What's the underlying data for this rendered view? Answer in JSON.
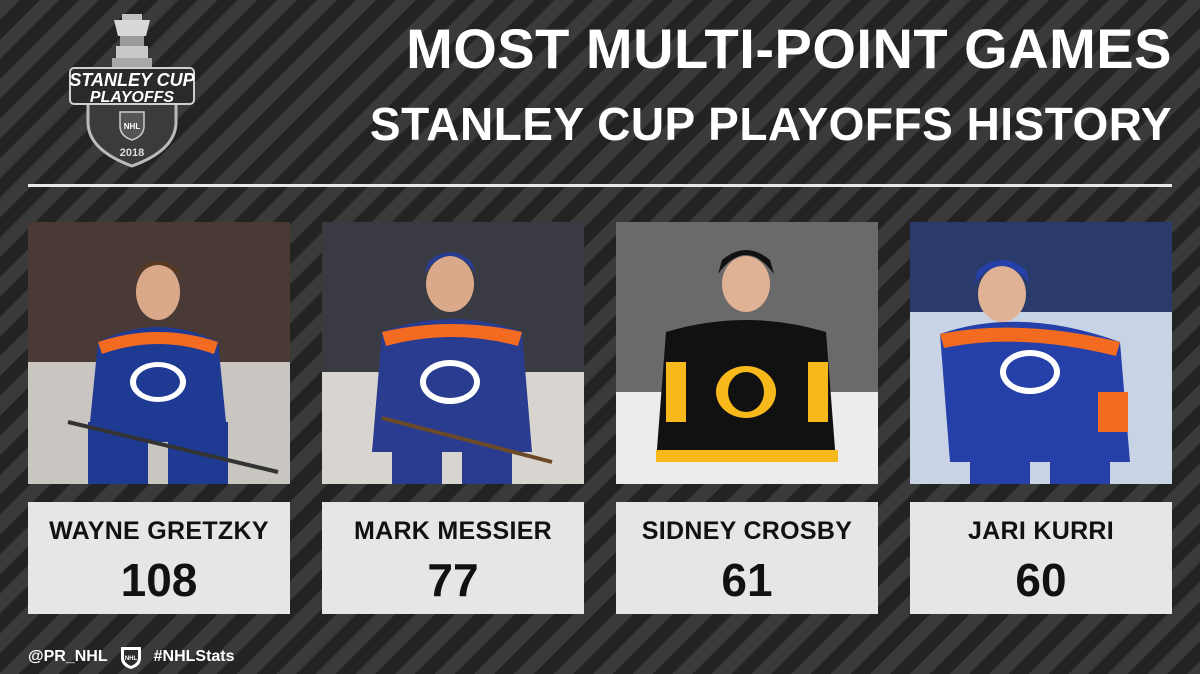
{
  "logo": {
    "line1": "STANLEY CUP",
    "line2": "PLAYOFFS",
    "badge": "NHL",
    "year": "2018",
    "icon": "stanley-cup-trophy-icon"
  },
  "title": {
    "line1": "MOST MULTI-POINT GAMES",
    "line2": "STANLEY CUP PLAYOFFS HISTORY"
  },
  "players": [
    {
      "name": "WAYNE GRETZKY",
      "value": "108",
      "team_color": "#1f3a93",
      "accent": "#f26b21"
    },
    {
      "name": "MARK MESSIER",
      "value": "77",
      "team_color": "#2a3c8f",
      "accent": "#f26b21"
    },
    {
      "name": "SIDNEY CROSBY",
      "value": "61",
      "team_color": "#111111",
      "accent": "#f7b81b"
    },
    {
      "name": "JARI KURRI",
      "value": "60",
      "team_color": "#2540a8",
      "accent": "#f26b21"
    }
  ],
  "footer": {
    "handle": "@PR_NHL",
    "hashtag": "#NHLStats",
    "icon": "nhl-shield-icon"
  }
}
